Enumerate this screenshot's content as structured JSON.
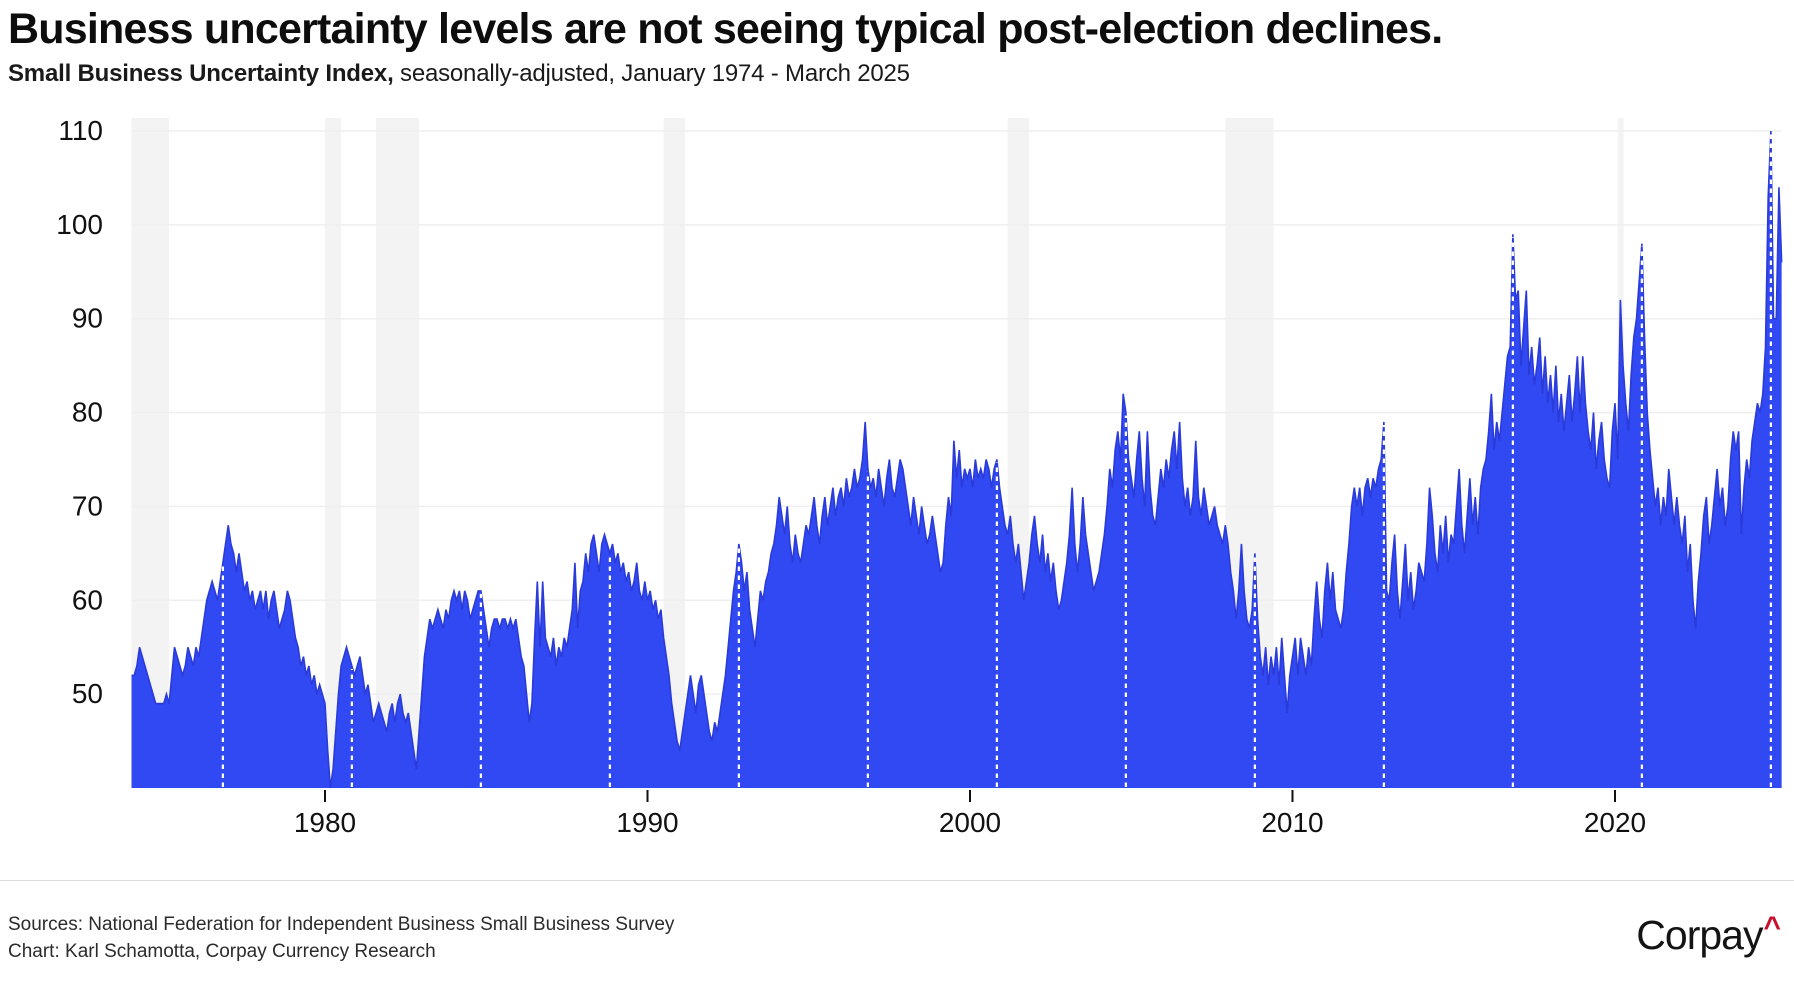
{
  "header": {
    "title": "Business uncertainty levels are not seeing typical post-election declines.",
    "subtitle_bold": "Small Business Uncertainty Index,",
    "subtitle_rest": " seasonally-adjusted, January 1974 - March 2025"
  },
  "footer": {
    "sources_line": "Sources: National Federation for Independent Business Small Business Survey",
    "chart_line": "Chart: Karl Schamotta, Corpay Currency Research",
    "logo_text": "Corpay",
    "logo_mark": "^"
  },
  "chart_data": {
    "type": "area",
    "series_name": "Small Business Uncertainty Index",
    "frequency": "monthly",
    "start": "1974-01",
    "end": "2025-03",
    "ylim": [
      40,
      110
    ],
    "yticks": [
      50,
      60,
      70,
      80,
      90,
      100,
      110
    ],
    "xticks": [
      1980,
      1990,
      2000,
      2010,
      2020
    ],
    "grid": "horizontal-only",
    "legend": "none",
    "election_months": [
      "1976-11",
      "1980-11",
      "1984-11",
      "1988-11",
      "1992-11",
      "1996-11",
      "2000-11",
      "2004-11",
      "2008-11",
      "2012-11",
      "2016-11",
      "2020-11",
      "2024-11"
    ],
    "recessions": [
      [
        "1974-01",
        "1975-03"
      ],
      [
        "1980-01",
        "1980-07"
      ],
      [
        "1981-08",
        "1982-12"
      ],
      [
        "1990-07",
        "1991-03"
      ],
      [
        "2001-03",
        "2001-11"
      ],
      [
        "2007-12",
        "2009-06"
      ],
      [
        "2020-02",
        "2020-04"
      ]
    ],
    "colors": {
      "area_fill": "#3049F2",
      "area_edge": "#2A3BD9",
      "recession_band": "#F3F3F3",
      "gridline": "#EFEFEF",
      "election_line": "#FFFFFF",
      "axis_text": "#111111",
      "tick_mark": "#111111"
    },
    "values": [
      52,
      52,
      53,
      55,
      54,
      53,
      52,
      51,
      50,
      49,
      49,
      49,
      49,
      50,
      49,
      52,
      55,
      54,
      53,
      52,
      53,
      55,
      54,
      53,
      55,
      54,
      56,
      58,
      60,
      61,
      62,
      61,
      60,
      62,
      64,
      66,
      68,
      66,
      65,
      63,
      65,
      63,
      61,
      62,
      60,
      61,
      59,
      60,
      61,
      59,
      61,
      58,
      60,
      61,
      59,
      57,
      58,
      59,
      61,
      60,
      58,
      56,
      55,
      53,
      54,
      52,
      53,
      51,
      52,
      50,
      51,
      50,
      49,
      44,
      40,
      42,
      46,
      50,
      53,
      54,
      55,
      54,
      53,
      52,
      53,
      54,
      52,
      50,
      51,
      49,
      47,
      48,
      49,
      48,
      47,
      46,
      48,
      49,
      47,
      49,
      50,
      48,
      47,
      48,
      46,
      44,
      42,
      46,
      50,
      54,
      56,
      58,
      57,
      58,
      59,
      58,
      57,
      59,
      58,
      60,
      61,
      60,
      61,
      59,
      61,
      60,
      58,
      59,
      60,
      61,
      61,
      59,
      57,
      55,
      57,
      58,
      58,
      57,
      58,
      58,
      57,
      58,
      57,
      58,
      56,
      54,
      53,
      50,
      47,
      49,
      56,
      62,
      55,
      62,
      56,
      55,
      54,
      56,
      53,
      55,
      54,
      56,
      55,
      57,
      59,
      64,
      57,
      61,
      62,
      65,
      63,
      66,
      67,
      65,
      63,
      66,
      67,
      66,
      65,
      66,
      64,
      65,
      63,
      64,
      62,
      63,
      61,
      62,
      64,
      61,
      60,
      62,
      60,
      61,
      59,
      60,
      58,
      59,
      56,
      54,
      52,
      49,
      47,
      45,
      44,
      46,
      48,
      50,
      52,
      50,
      48,
      51,
      52,
      50,
      48,
      46,
      45,
      47,
      46,
      48,
      50,
      52,
      55,
      58,
      61,
      63,
      66,
      64,
      61,
      63,
      59,
      57,
      55,
      58,
      61,
      60,
      62,
      63,
      65,
      66,
      68,
      71,
      69,
      67,
      70,
      66,
      64,
      67,
      65,
      64,
      66,
      68,
      67,
      69,
      71,
      68,
      66,
      69,
      71,
      68,
      70,
      72,
      69,
      71,
      72,
      70,
      73,
      71,
      72,
      74,
      72,
      73,
      75,
      79,
      74,
      72,
      73,
      71,
      74,
      72,
      70,
      73,
      75,
      72,
      71,
      73,
      75,
      74,
      72,
      70,
      68,
      71,
      69,
      67,
      70,
      68,
      66,
      67,
      69,
      67,
      65,
      63,
      64,
      68,
      71,
      69,
      77,
      73,
      76,
      72,
      74,
      73,
      74,
      72,
      75,
      73,
      74,
      73,
      75,
      74,
      72,
      74,
      75,
      72,
      70,
      68,
      67,
      69,
      66,
      64,
      66,
      63,
      60,
      62,
      64,
      67,
      69,
      66,
      64,
      67,
      63,
      65,
      62,
      64,
      61,
      59,
      60,
      62,
      64,
      67,
      72,
      66,
      63,
      66,
      71,
      67,
      65,
      63,
      61,
      62,
      63,
      65,
      67,
      70,
      74,
      72,
      76,
      78,
      75,
      82,
      80,
      75,
      73,
      71,
      75,
      78,
      73,
      70,
      78,
      72,
      69,
      68,
      71,
      74,
      72,
      75,
      73,
      76,
      78,
      74,
      79,
      73,
      70,
      72,
      69,
      71,
      77,
      71,
      69,
      72,
      70,
      68,
      69,
      70,
      68,
      67,
      66,
      68,
      66,
      63,
      61,
      58,
      61,
      66,
      61,
      58,
      57,
      59,
      65,
      58,
      54,
      52,
      55,
      51,
      54,
      52,
      55,
      51,
      56,
      52,
      48,
      52,
      54,
      56,
      52,
      56,
      54,
      52,
      55,
      53,
      58,
      62,
      58,
      56,
      61,
      64,
      60,
      63,
      59,
      58,
      57,
      59,
      63,
      66,
      70,
      72,
      70,
      72,
      69,
      72,
      73,
      71,
      73,
      72,
      74,
      75,
      79,
      61,
      60,
      64,
      67,
      61,
      58,
      62,
      66,
      60,
      63,
      59,
      61,
      64,
      63,
      62,
      66,
      72,
      69,
      65,
      63,
      68,
      65,
      69,
      64,
      67,
      66,
      70,
      74,
      68,
      65,
      69,
      73,
      68,
      71,
      67,
      72,
      74,
      75,
      78,
      82,
      76,
      79,
      77,
      80,
      83,
      86,
      87,
      99,
      92,
      93,
      85,
      89,
      93,
      84,
      87,
      83,
      85,
      88,
      82,
      86,
      81,
      84,
      80,
      85,
      79,
      82,
      78,
      81,
      84,
      79,
      82,
      86,
      80,
      86,
      81,
      78,
      76,
      80,
      74,
      77,
      79,
      75,
      73,
      72,
      78,
      81,
      75,
      92,
      85,
      81,
      78,
      84,
      88,
      90,
      94,
      98,
      88,
      80,
      76,
      73,
      70,
      72,
      68,
      71,
      69,
      74,
      71,
      68,
      71,
      68,
      66,
      69,
      63,
      66,
      60,
      57,
      62,
      65,
      69,
      71,
      66,
      68,
      71,
      74,
      70,
      72,
      68,
      70,
      75,
      78,
      76,
      78,
      67,
      72,
      75,
      73,
      77,
      79,
      81,
      80,
      82,
      87,
      103,
      110,
      90,
      90,
      104,
      96
    ]
  }
}
